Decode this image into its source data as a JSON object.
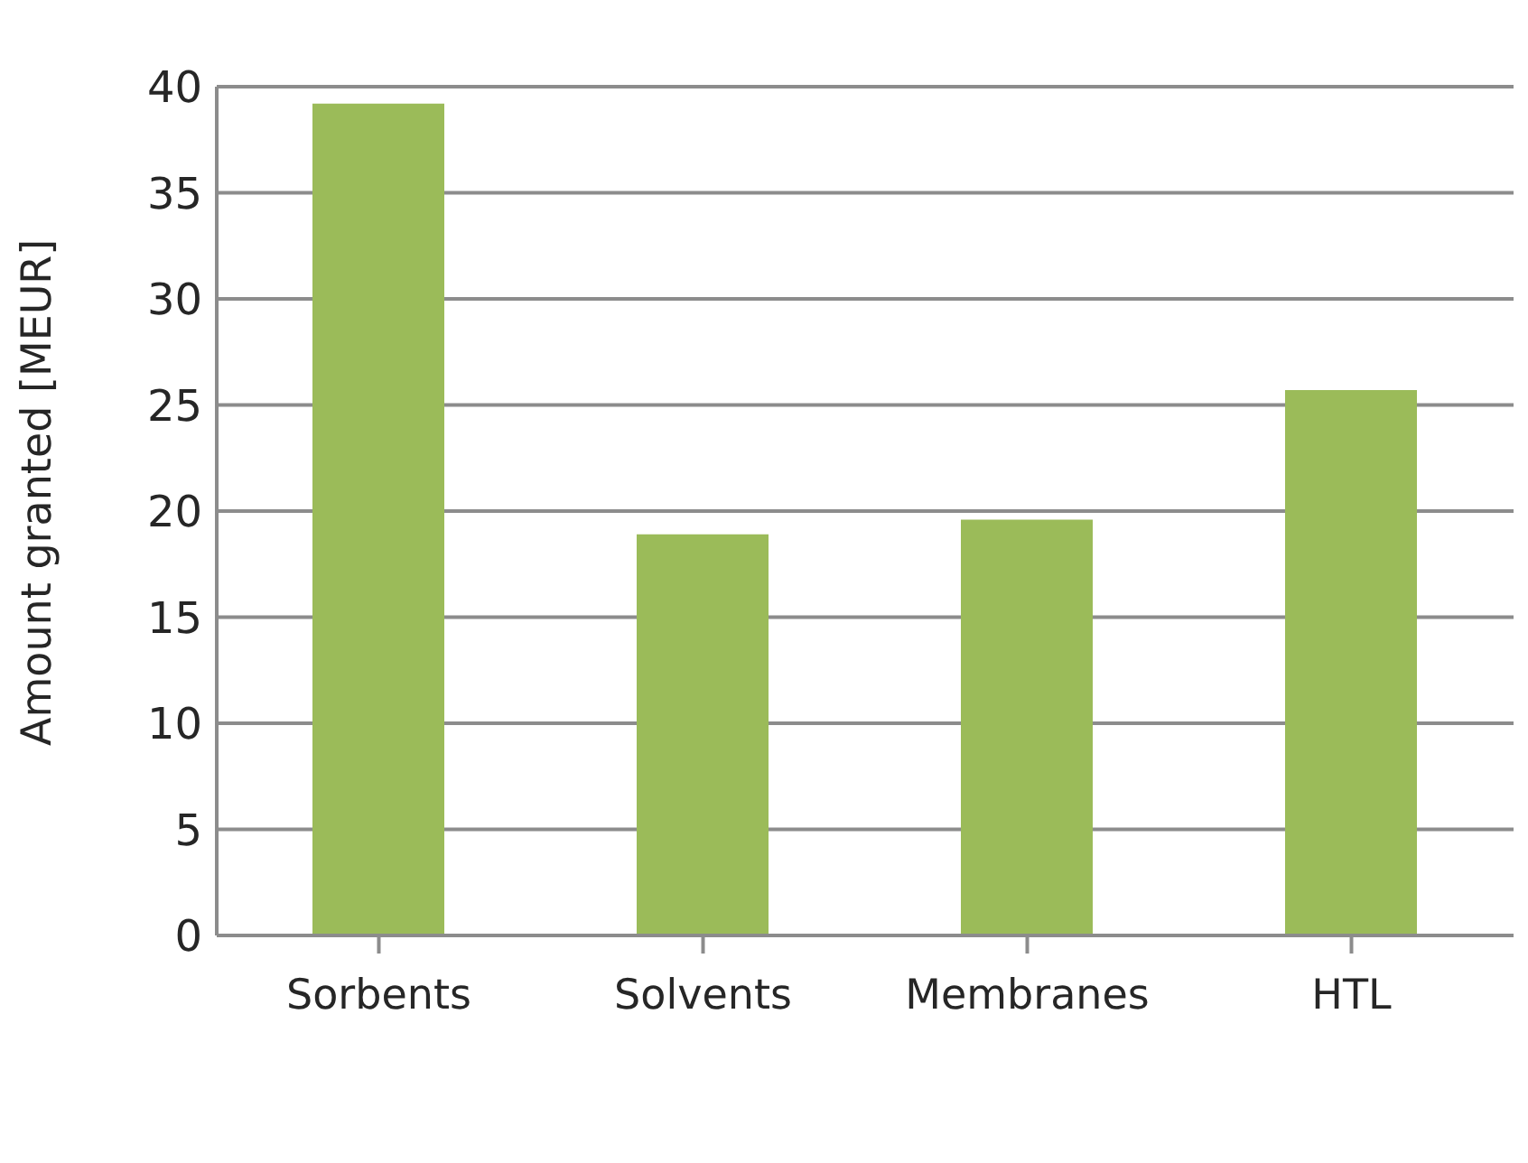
{
  "chart_data": {
    "type": "bar",
    "ylabel": "Amount granted [MEUR]",
    "categories": [
      "Sorbents",
      "Solvents",
      "Membranes",
      "HTL"
    ],
    "values": [
      39.2,
      18.9,
      19.6,
      25.7
    ],
    "color": "#9bbb59",
    "ylim": [
      0,
      40
    ],
    "yticks": [
      0,
      5,
      10,
      15,
      20,
      25,
      30,
      35,
      40
    ],
    "grid": "y"
  }
}
